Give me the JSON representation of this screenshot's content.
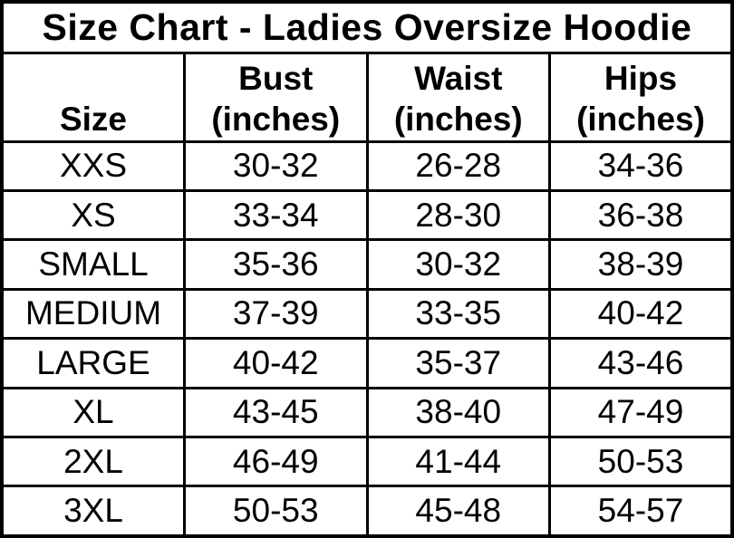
{
  "colors": {
    "background": "#ffffff",
    "border": "#000000",
    "text": "#000000"
  },
  "chart_data": {
    "type": "table",
    "title": "Size Chart - Ladies Oversize Hoodie",
    "columns": [
      {
        "label": "Size",
        "unit": ""
      },
      {
        "label": "Bust",
        "unit": "(inches)"
      },
      {
        "label": "Waist",
        "unit": "(inches)"
      },
      {
        "label": "Hips",
        "unit": "(inches)"
      }
    ],
    "rows": [
      {
        "size": "XXS",
        "bust": "30-32",
        "waist": "26-28",
        "hips": "34-36"
      },
      {
        "size": "XS",
        "bust": "33-34",
        "waist": "28-30",
        "hips": "36-38"
      },
      {
        "size": "SMALL",
        "bust": "35-36",
        "waist": "30-32",
        "hips": "38-39"
      },
      {
        "size": "MEDIUM",
        "bust": "37-39",
        "waist": "33-35",
        "hips": "40-42"
      },
      {
        "size": "LARGE",
        "bust": "40-42",
        "waist": "35-37",
        "hips": "43-46"
      },
      {
        "size": "XL",
        "bust": "43-45",
        "waist": "38-40",
        "hips": "47-49"
      },
      {
        "size": "2XL",
        "bust": "46-49",
        "waist": "41-44",
        "hips": "50-53"
      },
      {
        "size": "3XL",
        "bust": "50-53",
        "waist": "45-48",
        "hips": "54-57"
      }
    ]
  }
}
